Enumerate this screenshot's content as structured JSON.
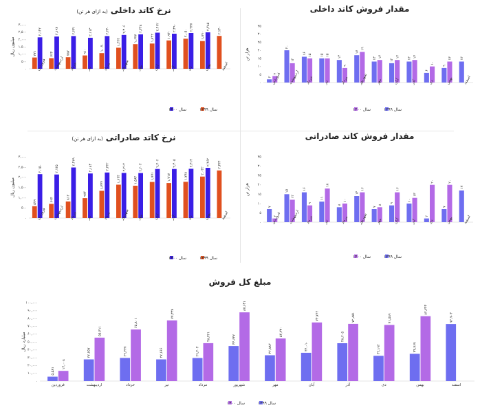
{
  "colors": {
    "series1399_a": "#e0501f",
    "series1400_a": "#3a1ee6",
    "series1399_b": "#6e6ef0",
    "series1400_b": "#b36ae6"
  },
  "months": [
    "فروردین",
    "اردیبهشت",
    "خرداد",
    "تیر",
    "مرداد",
    "شهریور",
    "مهر",
    "آبان",
    "آذر",
    "دی",
    "بهمن",
    "اسفند"
  ],
  "chart_data": [
    {
      "id": "domestic-price",
      "type": "bar",
      "title": "نرخ کاتد داخلی",
      "subtitle": "(به ازای هر تن)",
      "ylabel": "میلیون ریال",
      "ylim": [
        0,
        3000
      ],
      "yticks": [
        "۰",
        "۵۰۰",
        "۱,۰۰۰",
        "۱,۵۰۰",
        "۲,۰۰۰",
        "۲,۵۰۰",
        "۳,۰۰۰"
      ],
      "series": [
        {
          "name": "سال ۱۳۹۹",
          "values": [
            771,
            724,
            787,
            910,
            1070,
            1433,
            1677,
            1722,
            1930,
            2050,
            1890,
            2240
          ],
          "labels": [
            "۷۷۱",
            "۷۲۴",
            "۷۸۷",
            "۹۱۰",
            "۱,۰۷۰",
            "۱,۴۳۳",
            "۱,۶۷۷",
            "۱,۷۲۲",
            "۱,۹۳۰",
            "۲,۰۵۰",
            "۱,۸۹۰",
            "۲,۲۴۰"
          ]
        },
        {
          "name": "سال ۱۴۰۰",
          "values": [
            2142,
            2197,
            2231,
            2113,
            2230,
            2306,
            2348,
            2462,
            2390,
            2437,
            2485,
            null
          ],
          "labels": [
            "۲,۱۴۲",
            "۲,۱۹۷",
            "۲,۲۳۱",
            "۲,۱۱۳",
            "۲,۲۳۰",
            "۲,۳۰۶",
            "۲,۳۴۸",
            "۲,۴۶۲",
            "۲,۳۹۰",
            "۲,۴۳۷",
            "۲,۴۸۵",
            ""
          ]
        }
      ],
      "legend": "bottom-right"
    },
    {
      "id": "domestic-sales",
      "type": "bar",
      "title": "مقدار فروش کاتد داخلی",
      "ylabel": "هزار تن",
      "ylim": [
        0,
        35
      ],
      "yticks": [
        "۰",
        "۵",
        "۱۰",
        "۱۵",
        "۲۰",
        "۲۵",
        "۳۰",
        "۳۵"
      ],
      "series": [
        {
          "name": "سال ۱۳۹۹",
          "values": [
            2,
            20,
            16,
            15,
            14,
            17,
            13,
            12,
            13,
            6,
            9,
            13
          ],
          "labels": [
            "۲",
            "۲۰",
            "۱۶",
            "۱۵",
            "۱۴",
            "۱۷",
            "۱۳",
            "۱۲",
            "۱۳",
            "۶",
            "۹",
            "۱۳"
          ]
        },
        {
          "name": "سال ۱۴۰۰",
          "values": [
            4,
            12,
            15,
            15,
            9,
            19,
            14,
            14,
            14,
            10,
            13,
            null
          ],
          "labels": [
            "۴",
            "۱۲",
            "۱۵",
            "۱۵",
            "۹",
            "۱۹",
            "۱۴",
            "۱۴",
            "۱۴",
            "۱۰",
            "۱۳",
            ""
          ]
        }
      ],
      "legend": "bottom-left"
    },
    {
      "id": "export-price",
      "type": "bar",
      "title": "نرخ کاتد صادراتی",
      "subtitle": "(به ازای هر تن)",
      "ylabel": "میلیون ریال",
      "ylim": [
        0,
        3000
      ],
      "yticks": [
        "۰",
        "۵۰۰",
        "۱,۰۰۰",
        "۱,۵۰۰",
        "۲,۰۰۰",
        "۲,۵۰۰",
        "۳,۰۰۰"
      ],
      "series": [
        {
          "name": "سال ۱۳۹۹",
          "values": [
            579,
            694,
            812,
            974,
            1334,
            1634,
            1584,
            1771,
            1717,
            1778,
            2032,
            2334
          ],
          "labels": [
            "۵۷۹",
            "۶۹۴",
            "۸۱۲",
            "۹۷۴",
            "۱,۳۳۴",
            "۱,۶۳۴",
            "۱,۵۸۴",
            "۱,۷۷۱",
            "۱,۷۱۷",
            "۱,۷۷۸",
            "۲,۰۳۲",
            "۲,۳۳۴"
          ]
        },
        {
          "name": "سال ۱۴۰۰",
          "values": [
            2150,
            2135,
            2479,
            2184,
            2232,
            2212,
            2204,
            2402,
            2405,
            2413,
            2462,
            null
          ],
          "labels": [
            "۲,۱۵۰",
            "۲,۱۳۵",
            "۲,۴۷۹",
            "۲,۱۸۴",
            "۲,۲۳۲",
            "۲,۲۱۲",
            "۲,۲۰۴",
            "۲,۴۰۲",
            "۲,۴۰۵",
            "۲,۴۱۳",
            "۲,۴۶۲",
            ""
          ]
        }
      ],
      "legend": "bottom-right"
    },
    {
      "id": "export-sales",
      "type": "bar",
      "title": "مقدار فروش کاتد صادراتی",
      "ylabel": "هزار تن",
      "ylim": [
        0,
        35
      ],
      "yticks": [
        "۰",
        "۵",
        "۱۰",
        "۱۵",
        "۲۰",
        "۲۵",
        "۳۰",
        "۳۵"
      ],
      "series": [
        {
          "name": "سال ۱۳۹۹",
          "values": [
            7,
            15,
            16,
            11,
            8,
            14,
            7,
            9,
            10,
            2,
            7,
            17
          ],
          "labels": [
            "۷",
            "۱۵",
            "۱۶",
            "۱۱",
            "۸",
            "۱۴",
            "۷",
            "۹",
            "۱۰",
            "۲",
            "۷",
            "۱۷"
          ]
        },
        {
          "name": "سال ۱۴۰۰",
          "values": [
            2,
            12,
            9,
            18,
            10,
            16,
            8,
            16,
            13,
            20,
            20,
            null
          ],
          "labels": [
            "۲",
            "۱۲",
            "۹",
            "۱۸",
            "۱۰",
            "۱۶",
            "۸",
            "۱۶",
            "۱۳",
            "۲۰",
            "۲۰",
            ""
          ]
        }
      ],
      "legend": "bottom-left"
    },
    {
      "id": "total-sales",
      "type": "bar",
      "title": "مبلغ کل فروش",
      "ylabel": "میلیارد ریال",
      "ylim": [
        0,
        100000
      ],
      "yticks": [
        "۰",
        "۱۰,۰۰۰",
        "۲۰,۰۰۰",
        "۳۰,۰۰۰",
        "۴۰,۰۰۰",
        "۵۰,۰۰۰",
        "۶۰,۰۰۰",
        "۷۰,۰۰۰",
        "۸۰,۰۰۰",
        "۹۰,۰۰۰",
        "۱۰۰,۰۰۰"
      ],
      "series": [
        {
          "name": "سال ۱۳۹۹",
          "values": [
            5581,
            27657,
            29437,
            27666,
            29404,
            44637,
            32883,
            36010,
            48205,
            32192,
            34767,
            72703
          ],
          "labels": [
            "۵,۵۸۱",
            "۲۷,۶۵۷",
            "۲۹,۴۳۷",
            "۲۷,۶۶۶",
            "۲۹,۴۰۴",
            "۴۴,۶۳۷",
            "۳۲,۸۸۳",
            "۳۶,۰۱۰",
            "۴۸,۲۰۵",
            "۳۲,۱۹۲",
            "۳۴,۷۶۷",
            "۷۲,۷۰۳"
          ]
        },
        {
          "name": "سال ۱۴۰۰",
          "values": [
            13008,
            55311,
            65801,
            77338,
            48321,
            87641,
            54330,
            74762,
            72851,
            71589,
            82744,
            null
          ],
          "labels": [
            "۱۳,۰۰۸",
            "۵۵,۳۱۱",
            "۶۵,۸۰۱",
            "۷۷,۳۳۸",
            "۴۸,۳۲۱",
            "۸۷,۶۴۱",
            "۵۴,۳۳۰",
            "۷۴,۷۶۲",
            "۷۲,۸۵۱",
            "۷۱,۵۸۹",
            "۸۲,۷۴۴",
            ""
          ]
        }
      ],
      "legend": "bottom-center"
    }
  ]
}
